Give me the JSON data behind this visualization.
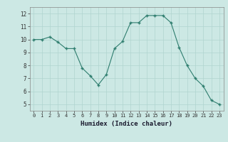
{
  "x": [
    0,
    1,
    2,
    3,
    4,
    5,
    6,
    7,
    8,
    9,
    10,
    11,
    12,
    13,
    14,
    15,
    16,
    17,
    18,
    19,
    20,
    21,
    22,
    23
  ],
  "y": [
    10.0,
    10.0,
    10.2,
    9.8,
    9.3,
    9.3,
    7.8,
    7.2,
    6.5,
    7.3,
    9.3,
    9.85,
    11.3,
    11.3,
    11.85,
    11.85,
    11.85,
    11.3,
    9.4,
    8.0,
    7.0,
    6.4,
    5.3,
    5.0
  ],
  "xlabel": "Humidex (Indice chaleur)",
  "ylim": [
    4.5,
    12.5
  ],
  "xlim": [
    -0.5,
    23.5
  ],
  "yticks": [
    5,
    6,
    7,
    8,
    9,
    10,
    11,
    12
  ],
  "xticks": [
    0,
    1,
    2,
    3,
    4,
    5,
    6,
    7,
    8,
    9,
    10,
    11,
    12,
    13,
    14,
    15,
    16,
    17,
    18,
    19,
    20,
    21,
    22,
    23
  ],
  "line_color": "#2e7d6e",
  "marker_color": "#2e7d6e",
  "bg_color": "#cce8e4",
  "grid_color": "#b0d4cf",
  "axes_bg": "#cce8e4"
}
